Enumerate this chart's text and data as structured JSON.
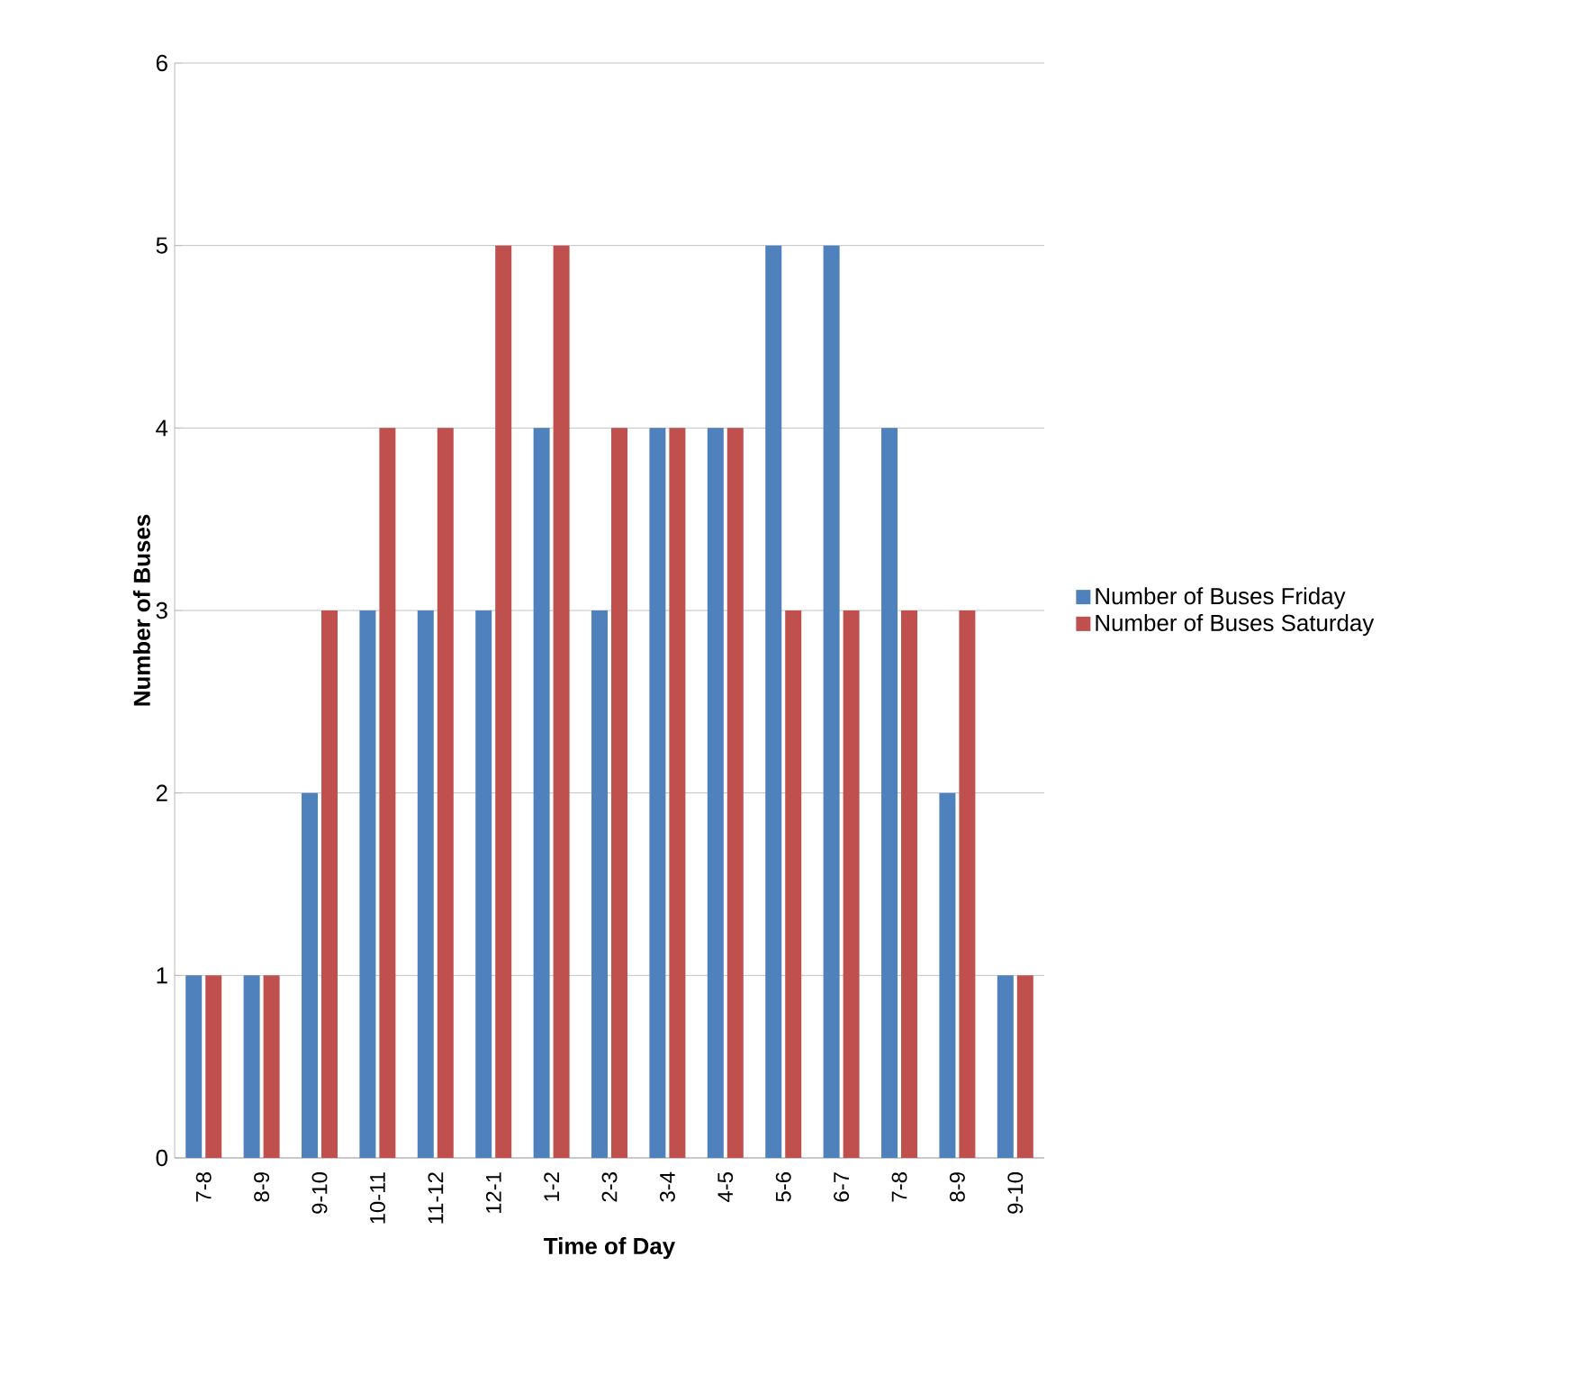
{
  "chart_data": {
    "type": "bar",
    "xlabel": "Time of Day",
    "ylabel": "Number of Buses",
    "categories": [
      "7-8",
      "8-9",
      "9-10",
      "10-11",
      "11-12",
      "12-1",
      "1-2",
      "2-3",
      "3-4",
      "4-5",
      "5-6",
      "6-7",
      "7-8",
      "8-9",
      "9-10"
    ],
    "series": [
      {
        "name": "Number of Buses Friday",
        "color": "#4f81bd",
        "values": [
          1,
          1,
          2,
          3,
          3,
          3,
          4,
          3,
          4,
          4,
          5,
          5,
          4,
          2,
          1
        ]
      },
      {
        "name": "Number of Buses Saturday",
        "color": "#c0504d",
        "values": [
          1,
          1,
          3,
          4,
          4,
          5,
          5,
          4,
          4,
          4,
          3,
          3,
          3,
          3,
          1
        ]
      }
    ],
    "ylim": [
      0,
      6
    ],
    "yticks": [
      0,
      1,
      2,
      3,
      4,
      5,
      6
    ],
    "grid": "y",
    "legend": "right"
  }
}
